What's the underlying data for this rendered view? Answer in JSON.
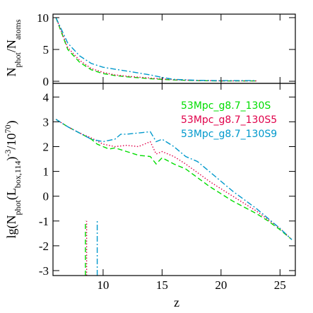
{
  "chart_data": [
    {
      "type": "line",
      "ylabel": [
        {
          "text": "N"
        },
        {
          "text": "phot",
          "sub": true
        },
        {
          "text": "/N"
        },
        {
          "text": "atoms",
          "sub": true
        }
      ],
      "xlim": [
        5.75,
        26.3
      ],
      "ylim": [
        -0.33,
        10.55
      ],
      "xticks": [
        10,
        15,
        20,
        25
      ],
      "yticks": [
        0,
        5,
        10
      ],
      "show_xtick_labels": false,
      "series": [
        {
          "name": "53Mpc_g8.7_130S",
          "color": "#00dd00",
          "linestyle": "dashed",
          "x": [
            6,
            7,
            8,
            9,
            10,
            11,
            12,
            14,
            16,
            18,
            20,
            23
          ],
          "values": [
            10,
            5,
            3,
            1.8,
            1.2,
            0.9,
            0.7,
            0.4,
            0.2,
            0.1,
            0.05,
            0.05
          ]
        },
        {
          "name": "53Mpc_g8.7_130S5",
          "color": "#e0004a",
          "linestyle": "dotted",
          "x": [
            6,
            7,
            8,
            9,
            10,
            11,
            12,
            14,
            16,
            18,
            20,
            23
          ],
          "values": [
            10,
            5.3,
            3.3,
            2.0,
            1.4,
            1.0,
            0.8,
            0.5,
            0.25,
            0.12,
            0.06,
            0.06
          ]
        },
        {
          "name": "53Mpc_g8.7_130S9",
          "color": "#0099cc",
          "linestyle": "dashdot",
          "x": [
            6,
            7,
            8,
            9,
            10,
            11,
            12,
            13,
            14,
            15,
            16,
            18,
            20,
            23
          ],
          "values": [
            10,
            6,
            4,
            2.8,
            2.2,
            1.9,
            1.6,
            1.3,
            1.0,
            0.6,
            0.3,
            0.15,
            0.1,
            0.1
          ]
        }
      ]
    },
    {
      "type": "line",
      "xlabel": "z",
      "ylabel": [
        {
          "text": "lg(N"
        },
        {
          "text": "phot",
          "sub": true
        },
        {
          "text": "(L"
        },
        {
          "text": "box,114",
          "sub": true
        },
        {
          "text": ")"
        },
        {
          "text": "-3",
          "sup": true
        },
        {
          "text": "/10"
        },
        {
          "text": "70",
          "sup": true
        },
        {
          "text": ")"
        }
      ],
      "xlim": [
        5.75,
        26.3
      ],
      "ylim": [
        -3.2,
        4.55
      ],
      "xticks": [
        10,
        15,
        20,
        25
      ],
      "yticks": [
        -3,
        -2,
        -1,
        0,
        1,
        2,
        3,
        4
      ],
      "show_xtick_labels": true,
      "legend": "upper right",
      "series": [
        {
          "name": "53Mpc_g8.7_130S",
          "color": "#00dd00",
          "linestyle": "dashed",
          "x": [
            8.5,
            8.5,
            null,
            6,
            7,
            8,
            9,
            9.5,
            10,
            10.5,
            11,
            12,
            13,
            14,
            14.5,
            15,
            16,
            17,
            18,
            19,
            20,
            21,
            22,
            23,
            24,
            25,
            26
          ],
          "values": [
            -3.2,
            -1,
            null,
            3.1,
            2.8,
            2.55,
            2.3,
            2.1,
            2.0,
            1.9,
            1.95,
            1.8,
            1.65,
            1.6,
            1.3,
            1.55,
            1.3,
            1.1,
            0.75,
            0.4,
            0.1,
            -0.2,
            -0.45,
            -0.7,
            -1.0,
            -1.35,
            -1.75
          ]
        },
        {
          "name": "53Mpc_g8.7_130S5",
          "color": "#e0004a",
          "linestyle": "dotted",
          "x": [
            8.6,
            8.6,
            null,
            6,
            7,
            8,
            9,
            10,
            11,
            12,
            13,
            14,
            14.5,
            15,
            16,
            17,
            18,
            19,
            20,
            21,
            22,
            23,
            24,
            25,
            26
          ],
          "values": [
            -3.2,
            -1,
            null,
            3.1,
            2.8,
            2.55,
            2.35,
            2.1,
            2.0,
            2.05,
            2.0,
            2.2,
            1.7,
            1.8,
            1.6,
            1.3,
            0.95,
            0.6,
            0.3,
            0,
            -0.3,
            -0.6,
            -0.95,
            -1.3,
            -1.75
          ]
        },
        {
          "name": "53Mpc_g8.7_130S9",
          "color": "#0099cc",
          "linestyle": "dashdot",
          "x": [
            9.5,
            9.5,
            null,
            6,
            7,
            8,
            9,
            10,
            11,
            11.5,
            12,
            13,
            14,
            14.5,
            15,
            16,
            17,
            18,
            19,
            20,
            21,
            22,
            23,
            24,
            25,
            26
          ],
          "values": [
            -3.2,
            -1,
            null,
            3.1,
            2.8,
            2.55,
            2.3,
            2.2,
            2.3,
            2.5,
            2.5,
            2.55,
            2.6,
            2.2,
            2.3,
            2.0,
            1.6,
            1.4,
            1.0,
            0.6,
            0.2,
            -0.15,
            -0.5,
            -0.9,
            -1.3,
            -1.75
          ]
        }
      ]
    }
  ]
}
